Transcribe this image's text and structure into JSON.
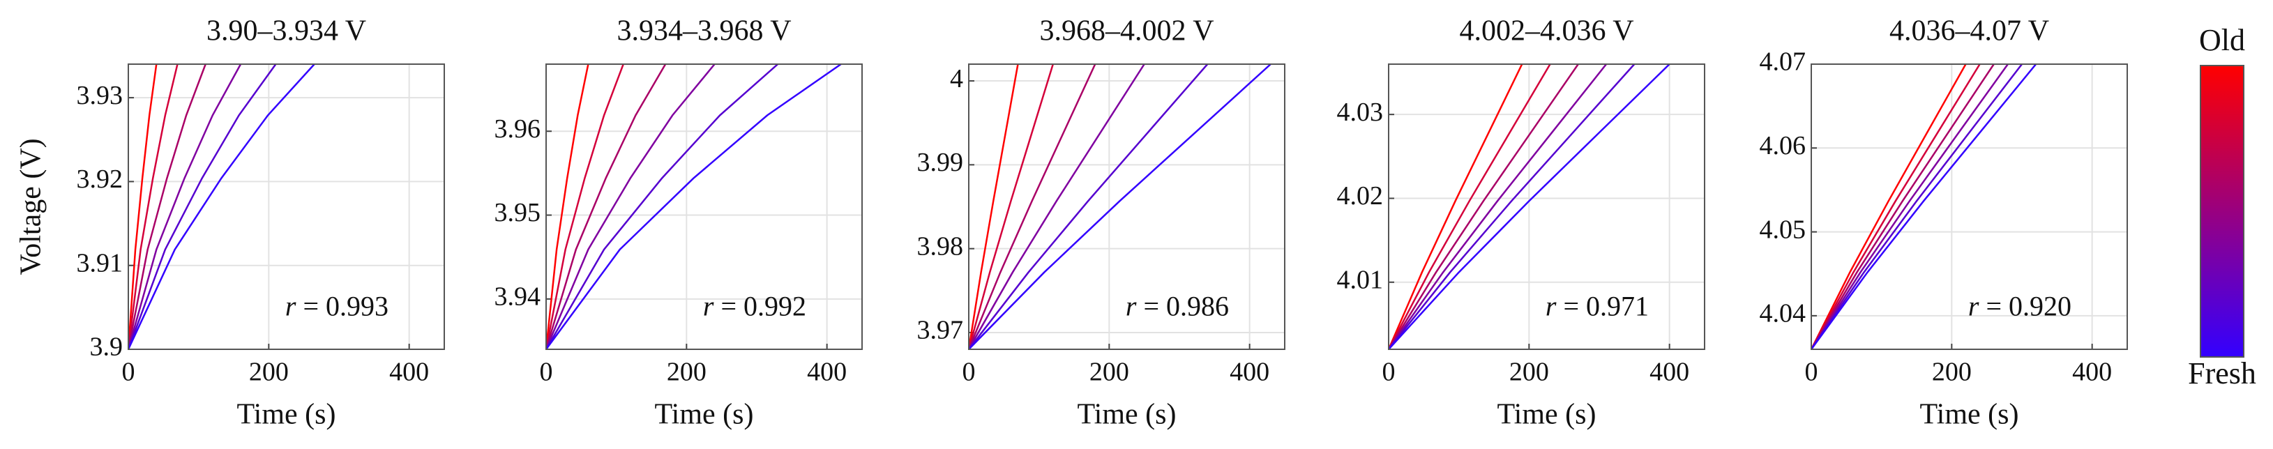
{
  "chart_data": [
    {
      "type": "line",
      "title": "3.90–3.934 V",
      "ylabel": "Voltage (V)",
      "xlabel": "Time (s)",
      "xlim": [
        0,
        450
      ],
      "xticks": [
        0,
        200,
        400
      ],
      "ylim": [
        3.9,
        3.934
      ],
      "yticks": [
        3.9,
        3.91,
        3.92,
        3.93
      ],
      "grid": true,
      "annotation": {
        "symbol": "r",
        "text": "= 0.993"
      },
      "series": [
        {
          "color": "#ff0000",
          "x": [
            0,
            10,
            20,
            30,
            40
          ],
          "values": [
            3.9,
            3.9119,
            3.9204,
            3.9279,
            3.934
          ]
        },
        {
          "color": "#d4003a",
          "x": [
            0,
            17.5,
            35,
            52.5,
            70
          ],
          "values": [
            3.9,
            3.9119,
            3.9204,
            3.9279,
            3.934
          ]
        },
        {
          "color": "#aa0066",
          "x": [
            0,
            27.5,
            55,
            82.5,
            110
          ],
          "values": [
            3.9,
            3.9119,
            3.9204,
            3.9279,
            3.934
          ]
        },
        {
          "color": "#8000a0",
          "x": [
            0,
            40,
            80,
            120,
            160
          ],
          "values": [
            3.9,
            3.9119,
            3.9204,
            3.9279,
            3.934
          ]
        },
        {
          "color": "#5500d0",
          "x": [
            0,
            52.5,
            105,
            157.5,
            210
          ],
          "values": [
            3.9,
            3.9119,
            3.9204,
            3.9279,
            3.934
          ]
        },
        {
          "color": "#3300ff",
          "x": [
            0,
            66.25,
            132.5,
            198.75,
            265
          ],
          "values": [
            3.9,
            3.9119,
            3.9204,
            3.9279,
            3.934
          ]
        }
      ]
    },
    {
      "type": "line",
      "title": "3.934–3.968 V",
      "xlabel": "Time (s)",
      "xlim": [
        0,
        450
      ],
      "xticks": [
        0,
        200,
        400
      ],
      "ylim": [
        3.934,
        3.968
      ],
      "yticks": [
        3.94,
        3.95,
        3.96
      ],
      "grid": true,
      "annotation": {
        "symbol": "r",
        "text": "= 0.992"
      },
      "series": [
        {
          "color": "#ff0000",
          "x": [
            0,
            15,
            30,
            45,
            60
          ],
          "values": [
            3.934,
            3.9459,
            3.9544,
            3.9619,
            3.968
          ]
        },
        {
          "color": "#d4003a",
          "x": [
            0,
            27.5,
            55,
            82.5,
            110
          ],
          "values": [
            3.934,
            3.9459,
            3.9544,
            3.9619,
            3.968
          ]
        },
        {
          "color": "#aa0066",
          "x": [
            0,
            42.5,
            85,
            127.5,
            170
          ],
          "values": [
            3.934,
            3.9459,
            3.9544,
            3.9619,
            3.968
          ]
        },
        {
          "color": "#8000a0",
          "x": [
            0,
            60,
            120,
            180,
            240
          ],
          "values": [
            3.934,
            3.9459,
            3.9544,
            3.9619,
            3.968
          ]
        },
        {
          "color": "#5500d0",
          "x": [
            0,
            82.5,
            165,
            247.5,
            330
          ],
          "values": [
            3.934,
            3.9459,
            3.9544,
            3.9619,
            3.968
          ]
        },
        {
          "color": "#3300ff",
          "x": [
            0,
            105,
            210,
            315,
            420
          ],
          "values": [
            3.934,
            3.9459,
            3.9544,
            3.9619,
            3.968
          ]
        }
      ]
    },
    {
      "type": "line",
      "title": "3.968–4.002 V",
      "xlabel": "Time (s)",
      "xlim": [
        0,
        450
      ],
      "xticks": [
        0,
        200,
        400
      ],
      "ylim": [
        3.968,
        4.002
      ],
      "yticks": [
        3.97,
        3.98,
        3.99,
        4
      ],
      "grid": true,
      "annotation": {
        "symbol": "r",
        "text": "= 0.986"
      },
      "series": [
        {
          "color": "#ff0000",
          "x": [
            0,
            17.5,
            35,
            52.5,
            70
          ],
          "values": [
            3.968,
            3.97718,
            3.98568,
            3.99384,
            4.002
          ]
        },
        {
          "color": "#d4003a",
          "x": [
            0,
            30,
            60,
            90,
            120
          ],
          "values": [
            3.968,
            3.97718,
            3.98568,
            3.99384,
            4.002
          ]
        },
        {
          "color": "#aa0066",
          "x": [
            0,
            45,
            90,
            135,
            180
          ],
          "values": [
            3.968,
            3.97718,
            3.98568,
            3.99384,
            4.002
          ]
        },
        {
          "color": "#8000a0",
          "x": [
            0,
            62.5,
            125,
            187.5,
            250
          ],
          "values": [
            3.968,
            3.97718,
            3.98568,
            3.99384,
            4.002
          ]
        },
        {
          "color": "#5500d0",
          "x": [
            0,
            85,
            170,
            255,
            340
          ],
          "values": [
            3.968,
            3.97718,
            3.98568,
            3.99384,
            4.002
          ]
        },
        {
          "color": "#3300ff",
          "x": [
            0,
            107.5,
            215,
            322.5,
            430
          ],
          "values": [
            3.968,
            3.97718,
            3.98568,
            3.99384,
            4.002
          ]
        }
      ]
    },
    {
      "type": "line",
      "title": "4.002–4.036 V",
      "xlabel": "Time (s)",
      "xlim": [
        0,
        450
      ],
      "xticks": [
        0,
        200,
        400
      ],
      "ylim": [
        4.002,
        4.036
      ],
      "yticks": [
        4.01,
        4.02,
        4.03
      ],
      "grid": true,
      "annotation": {
        "symbol": "r",
        "text": "= 0.971"
      },
      "series": [
        {
          "color": "#ff0000",
          "x": [
            0,
            47.5,
            95,
            142.5,
            190
          ],
          "values": [
            4.002,
            4.01118,
            4.01968,
            4.02784,
            4.036
          ]
        },
        {
          "color": "#d4003a",
          "x": [
            0,
            57.5,
            115,
            172.5,
            230
          ],
          "values": [
            4.002,
            4.01118,
            4.01968,
            4.02784,
            4.036
          ]
        },
        {
          "color": "#aa0066",
          "x": [
            0,
            67.5,
            135,
            202.5,
            270
          ],
          "values": [
            4.002,
            4.01118,
            4.01968,
            4.02784,
            4.036
          ]
        },
        {
          "color": "#8000a0",
          "x": [
            0,
            77.5,
            155,
            232.5,
            310
          ],
          "values": [
            4.002,
            4.01118,
            4.01968,
            4.02784,
            4.036
          ]
        },
        {
          "color": "#5500d0",
          "x": [
            0,
            87.5,
            175,
            262.5,
            350
          ],
          "values": [
            4.002,
            4.01118,
            4.01968,
            4.02784,
            4.036
          ]
        },
        {
          "color": "#3300ff",
          "x": [
            0,
            100,
            200,
            300,
            400
          ],
          "values": [
            4.002,
            4.01118,
            4.01968,
            4.02784,
            4.036
          ]
        }
      ]
    },
    {
      "type": "line",
      "title": "4.036–4.07 V",
      "xlabel": "Time (s)",
      "xlim": [
        0,
        450
      ],
      "xticks": [
        0,
        200,
        400
      ],
      "ylim": [
        4.036,
        4.07
      ],
      "yticks": [
        4.04,
        4.05,
        4.06,
        4.07
      ],
      "grid": true,
      "annotation": {
        "symbol": "r",
        "text": "= 0.920"
      },
      "series": [
        {
          "color": "#ff0000",
          "x": [
            0,
            55,
            110,
            165,
            220
          ],
          "values": [
            4.036,
            4.04518,
            4.05368,
            4.06184,
            4.07
          ]
        },
        {
          "color": "#d4003a",
          "x": [
            0,
            60,
            120,
            180,
            240
          ],
          "values": [
            4.036,
            4.04518,
            4.05368,
            4.06184,
            4.07
          ]
        },
        {
          "color": "#aa0066",
          "x": [
            0,
            65,
            130,
            195,
            260
          ],
          "values": [
            4.036,
            4.04518,
            4.05368,
            4.06184,
            4.07
          ]
        },
        {
          "color": "#8000a0",
          "x": [
            0,
            70,
            140,
            210,
            280
          ],
          "values": [
            4.036,
            4.04518,
            4.05368,
            4.06184,
            4.07
          ]
        },
        {
          "color": "#5500d0",
          "x": [
            0,
            75,
            150,
            225,
            300
          ],
          "values": [
            4.036,
            4.04518,
            4.05368,
            4.06184,
            4.07
          ]
        },
        {
          "color": "#3300ff",
          "x": [
            0,
            80,
            160,
            240,
            320
          ],
          "values": [
            4.036,
            4.04518,
            4.05368,
            4.06184,
            4.07
          ]
        }
      ]
    }
  ],
  "colorbar": {
    "top_label": "Old",
    "bottom_label": "Fresh",
    "top_color": "#ff0000",
    "bottom_color": "#3300ff"
  }
}
